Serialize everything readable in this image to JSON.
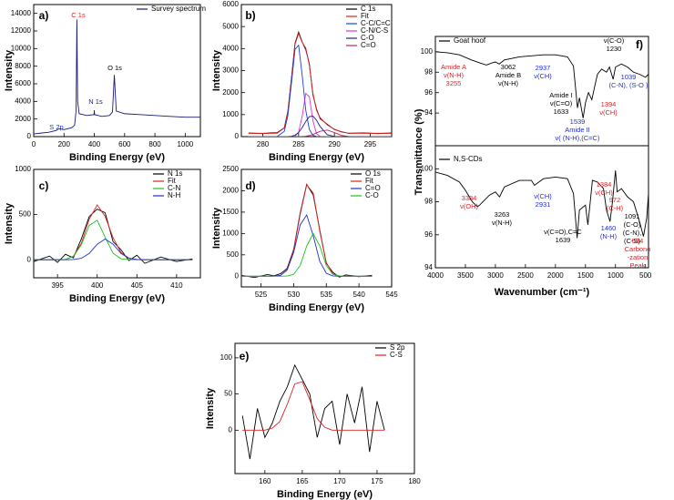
{
  "chart_data": [
    {
      "type": "line",
      "panel_label": "a)",
      "xlabel": "Binding Energy (eV)",
      "ylabel": "Intensity",
      "x": [
        0,
        50,
        100,
        150,
        165,
        200,
        250,
        270,
        280,
        285,
        290,
        300,
        350,
        398,
        400,
        402,
        450,
        500,
        520,
        532,
        545,
        600,
        700,
        800,
        900,
        1000,
        1100
      ],
      "series": [
        {
          "name": "Survey spectrum",
          "color": "#1a1a7a",
          "values": [
            300,
            400,
            500,
            700,
            900,
            800,
            1000,
            1300,
            3000,
            13300,
            4000,
            2600,
            2400,
            2500,
            3000,
            2500,
            2300,
            2400,
            2800,
            7000,
            2900,
            2600,
            2500,
            2400,
            2300,
            2200,
            2200
          ]
        }
      ],
      "xlim": [
        0,
        1100
      ],
      "ylim": [
        0,
        15000
      ],
      "xticks": [
        0,
        200,
        400,
        600,
        800,
        1000
      ],
      "yticks": [
        0,
        2000,
        4000,
        6000,
        8000,
        10000,
        12000,
        14000
      ],
      "annotations": [
        {
          "lines": [
            "C 1s"
          ],
          "color": "#e02020"
        },
        {
          "lines": [
            "N 1s"
          ],
          "color": "#1a1a7a"
        },
        {
          "lines": [
            "O 1s"
          ],
          "color": "#000000"
        },
        {
          "lines": [
            "S 2p"
          ],
          "color": "#2030d0"
        }
      ]
    },
    {
      "type": "line",
      "panel_label": "b)",
      "xlabel": "Binding Energy (eV)",
      "ylabel": "Intensity",
      "x": [
        278,
        280,
        281,
        282,
        283,
        283.5,
        284,
        284.5,
        285,
        285.5,
        286,
        286.5,
        287,
        287.5,
        288,
        289,
        290,
        291,
        292,
        294,
        296,
        298
      ],
      "series": [
        {
          "name": "C 1s",
          "color": "#000000",
          "values": [
            160,
            140,
            170,
            180,
            400,
            1150,
            2650,
            4250,
            4750,
            4300,
            3950,
            3300,
            1900,
            1250,
            820,
            560,
            320,
            220,
            150,
            170,
            140,
            160
          ]
        },
        {
          "name": "Fit",
          "color": "#e02020",
          "values": [
            150,
            150,
            150,
            154,
            392,
            1112,
            2604,
            4205,
            4684,
            4281,
            4021,
            3246,
            1965,
            1197,
            862,
            531,
            338,
            206,
            158,
            150,
            150,
            150
          ]
        },
        {
          "name": "C-C/C=C",
          "color": "#1f3fdd",
          "values": [
            0,
            0,
            0,
            4,
            241,
            958,
            2434,
            3970,
            4150,
            2782,
            1195,
            330,
            58,
            7,
            0,
            0,
            0,
            0,
            0,
            0,
            0,
            0
          ]
        },
        {
          "name": "C-N/C-S",
          "color": "#e030e0",
          "values": [
            0,
            0,
            0,
            0,
            0,
            0,
            1,
            18,
            194,
            934,
            1966,
            1810,
            729,
            129,
            10,
            0,
            0,
            0,
            0,
            0,
            0,
            0
          ]
        },
        {
          "name": "C-O",
          "color": "#20208a",
          "values": [
            0,
            0,
            0,
            0,
            1,
            4,
            19,
            67,
            188,
            408,
            690,
            908,
            931,
            744,
            462,
            85,
            6,
            0,
            0,
            0,
            0,
            0
          ]
        },
        {
          "name": "C=O",
          "color": "#c0206a",
          "values": [
            0,
            0,
            0,
            0,
            0,
            0,
            0,
            0,
            2,
            7,
            20,
            48,
            97,
            167,
            240,
            296,
            182,
            56,
            8,
            0,
            0,
            0
          ]
        }
      ],
      "xlim": [
        277,
        298
      ],
      "ylim": [
        0,
        6000
      ],
      "xticks": [
        280,
        285,
        290,
        295
      ],
      "yticks": [
        0,
        1000,
        2000,
        3000,
        4000,
        5000,
        6000
      ],
      "annotations": []
    },
    {
      "type": "line",
      "panel_label": "c)",
      "xlabel": "Binding Energy (eV)",
      "ylabel": "Intensity",
      "x": [
        392,
        394,
        395,
        396,
        397,
        398,
        399,
        400,
        401,
        402,
        403,
        404,
        405,
        406,
        408,
        410,
        412
      ],
      "series": [
        {
          "name": "N 1s",
          "color": "#000000",
          "values": [
            -20,
            40,
            -30,
            60,
            20,
            230,
            480,
            560,
            520,
            200,
            110,
            -10,
            50,
            -40,
            30,
            -20,
            10
          ]
        },
        {
          "name": "Fit",
          "color": "#e02020",
          "values": [
            0,
            0,
            0,
            4,
            38,
            181,
            450,
            607,
            480,
            243,
            80,
            17,
            2,
            0,
            0,
            0,
            0
          ]
        },
        {
          "name": "C-N",
          "color": "#20c020",
          "values": [
            0,
            0,
            0,
            4,
            36,
            165,
            380,
            436,
            250,
            72,
            10,
            1,
            0,
            0,
            0,
            0,
            0
          ]
        },
        {
          "name": "N-H",
          "color": "#2030d0",
          "values": [
            0,
            0,
            0,
            0,
            2,
            16,
            70,
            171,
            230,
            171,
            70,
            16,
            2,
            0,
            0,
            0,
            0
          ]
        }
      ],
      "xlim": [
        392,
        413
      ],
      "ylim": [
        -200,
        1000
      ],
      "xticks": [
        395,
        400,
        405,
        410
      ],
      "yticks": [
        0,
        500,
        1000
      ],
      "annotations": []
    },
    {
      "type": "line",
      "panel_label": "d)",
      "xlabel": "Binding Energy (eV)",
      "ylabel": "Intensity",
      "x": [
        522,
        524,
        526,
        527,
        528,
        529,
        530,
        531,
        532,
        533,
        534,
        535,
        536,
        537,
        538,
        540,
        542
      ],
      "series": [
        {
          "name": "O 1s",
          "color": "#000000",
          "values": [
            20,
            -30,
            40,
            10,
            60,
            180,
            620,
            1480,
            2150,
            1900,
            1080,
            300,
            90,
            -20,
            30,
            -10,
            20
          ]
        },
        {
          "name": "Fit",
          "color": "#e02020",
          "values": [
            0,
            0,
            0,
            2,
            20,
            146,
            600,
            1449,
            2140,
            1947,
            1054,
            319,
            52,
            4,
            0,
            0,
            0
          ]
        },
        {
          "name": "C=O",
          "color": "#2030d0",
          "values": [
            0,
            0,
            0,
            2,
            20,
            142,
            556,
            1200,
            1433,
            947,
            347,
            70,
            8,
            0,
            0,
            0,
            0
          ]
        },
        {
          "name": "C-O",
          "color": "#20c020",
          "values": [
            0,
            0,
            0,
            0,
            0,
            4,
            44,
            249,
            707,
            1000,
            707,
            249,
            44,
            4,
            0,
            0,
            0
          ]
        }
      ],
      "xlim": [
        522,
        545
      ],
      "ylim": [
        -250,
        2500
      ],
      "xticks": [
        525,
        530,
        535,
        540,
        545
      ],
      "yticks": [
        0,
        500,
        1000,
        1500,
        2000,
        2500
      ],
      "annotations": []
    },
    {
      "type": "line",
      "panel_label": "e)",
      "xlabel": "Binding Energy (eV)",
      "ylabel": "Intensity",
      "x": [
        157,
        158,
        159,
        160,
        161,
        162,
        163,
        164,
        165,
        166,
        167,
        168,
        169,
        170,
        171,
        172,
        173,
        174,
        175,
        176
      ],
      "series": [
        {
          "name": "S 2p",
          "color": "#000000",
          "values": [
            20,
            -40,
            30,
            -10,
            10,
            40,
            60,
            90,
            70,
            50,
            -10,
            30,
            40,
            -20,
            50,
            10,
            60,
            -30,
            40,
            0
          ]
        },
        {
          "name": "C-S",
          "color": "#e02020",
          "values": [
            0,
            0,
            0,
            0,
            3,
            12,
            36,
            64,
            67,
            42,
            16,
            4,
            0,
            0,
            0,
            0,
            0,
            0,
            0,
            0
          ]
        }
      ],
      "xlim": [
        156,
        180
      ],
      "ylim": [
        -60,
        120
      ],
      "xticks": [
        160,
        165,
        170,
        175,
        180
      ],
      "yticks": [
        0,
        50,
        100
      ],
      "annotations": []
    },
    {
      "type": "line",
      "panel_label": "f)",
      "ylabel": "Transmittance (%)",
      "x": [
        4000,
        3800,
        3600,
        3400,
        3255,
        3150,
        3062,
        3000,
        2937,
        2850,
        2600,
        2400,
        2200,
        2000,
        1800,
        1700,
        1633,
        1600,
        1539,
        1500,
        1450,
        1394,
        1350,
        1300,
        1230,
        1150,
        1100,
        1039,
        1000,
        900,
        800,
        700,
        600,
        500,
        450
      ],
      "series": [
        {
          "name": "Goat hoof",
          "color": "#000000",
          "values": [
            100,
            99.9,
            99.7,
            99.2,
            98.9,
            98.7,
            98.9,
            99.0,
            98.8,
            99.2,
            99.5,
            99.6,
            99.7,
            99.7,
            99.5,
            98.6,
            94.5,
            95.5,
            93.5,
            95.0,
            96.0,
            95.3,
            96.5,
            97.8,
            98.3,
            98.0,
            98.5,
            97.3,
            98.5,
            98.8,
            98.5,
            98.0,
            97.8,
            97.5,
            97.8
          ]
        }
      ],
      "xlim": [
        4000,
        450
      ],
      "ylim": [
        90.8,
        101.5
      ],
      "xticks": [],
      "yticks": [
        94,
        96,
        98,
        100
      ],
      "annotations": [
        {
          "lines": [
            "Amide A",
            "ν(N-H)",
            "3255"
          ],
          "color": "#e02020"
        },
        {
          "lines": [
            "3062",
            "Amide B",
            "ν(N-H)"
          ],
          "color": "#000000"
        },
        {
          "lines": [
            "2937",
            "ν(CH)"
          ],
          "color": "#2030d0"
        },
        {
          "lines": [
            "ν(C-O)",
            "1230"
          ],
          "color": "#000000"
        },
        {
          "lines": [
            "1039",
            "(C-N), (S-O )"
          ],
          "color": "#2030d0"
        },
        {
          "lines": [
            "Amide I",
            "ν(C=O)",
            "1633"
          ],
          "color": "#000000"
        },
        {
          "lines": [
            "1394",
            "ν(CH)"
          ],
          "color": "#e02020"
        },
        {
          "lines": [
            "1539",
            "Amide II",
            "ν( (N-H),(C=C)"
          ],
          "color": "#2030d0"
        }
      ]
    },
    {
      "type": "line",
      "xlabel": "Wavenumber (cm⁻¹)",
      "x": [
        4000,
        3800,
        3600,
        3500,
        3384,
        3300,
        3263,
        3100,
        3000,
        2931,
        2850,
        2600,
        2400,
        2350,
        2200,
        2000,
        1800,
        1700,
        1639,
        1600,
        1500,
        1460,
        1420,
        1384,
        1300,
        1200,
        1150,
        1091,
        1050,
        1000,
        972,
        900,
        800,
        700,
        600,
        534,
        480,
        450
      ],
      "series": [
        {
          "name": "N,S-CDs",
          "color": "#000000",
          "values": [
            99.8,
            99.6,
            99.2,
            98.7,
            98.0,
            97.7,
            97.8,
            98.4,
            98.6,
            98.3,
            98.9,
            99.3,
            99.3,
            99.0,
            99.4,
            99.5,
            99.4,
            98.5,
            95.8,
            97.5,
            97.8,
            96.6,
            98.0,
            99.3,
            99.2,
            98.8,
            97.5,
            96.8,
            98.0,
            99.9,
            98.6,
            98.8,
            98.3,
            98.0,
            96.8,
            95.9,
            97.0,
            98.5
          ]
        }
      ],
      "xlim": [
        4000,
        450
      ],
      "ylim": [
        94,
        101.4
      ],
      "xticks": [
        4000,
        3500,
        3000,
        2500,
        2000,
        1500,
        1000,
        500
      ],
      "yticks": [
        94,
        96,
        98,
        100
      ],
      "annotations": [
        {
          "lines": [
            "3384",
            "ν(OH)"
          ],
          "color": "#e02020"
        },
        {
          "lines": [
            "3263",
            "ν(N-H)"
          ],
          "color": "#000000"
        },
        {
          "lines": [
            "ν(CH)",
            "2931"
          ],
          "color": "#2030d0"
        },
        {
          "lines": [
            "ν(C=O),C=C",
            "1639"
          ],
          "color": "#000000"
        },
        {
          "lines": [
            "1384",
            "ν(CH)"
          ],
          "color": "#e02020"
        },
        {
          "lines": [
            "1460",
            "(N-H)"
          ],
          "color": "#2030d0"
        },
        {
          "lines": [
            "1091",
            "(C-O)",
            "(C-N),",
            "(C-S)"
          ],
          "color": "#000000"
        },
        {
          "lines": [
            "972",
            "(C-H)"
          ],
          "color": "#e02020"
        },
        {
          "lines": [
            "534",
            "Carbono",
            "-zation",
            "Peak"
          ],
          "color": "#e02020"
        }
      ]
    }
  ]
}
